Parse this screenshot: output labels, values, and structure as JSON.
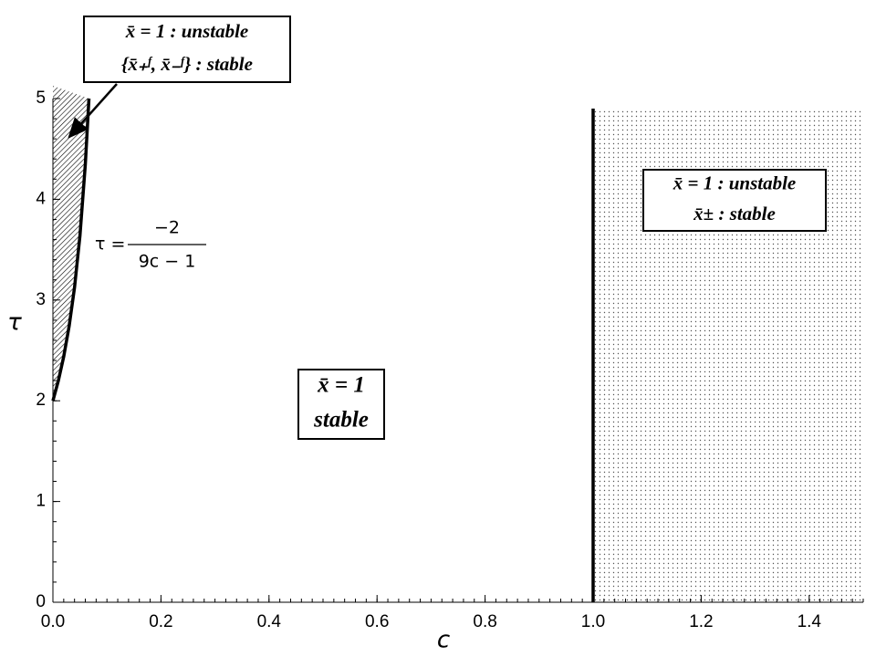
{
  "chart_data": {
    "type": "line",
    "xlabel": "c",
    "ylabel": "τ",
    "xlim": [
      0,
      1.5
    ],
    "ylim": [
      0,
      5
    ],
    "xticks": [
      {
        "value": 0,
        "label": "0.0"
      },
      0.2,
      0.4,
      0.6,
      0.8,
      {
        "value": 1,
        "label": "1.0"
      },
      1.2,
      1.4
    ],
    "yticks": [
      0,
      1,
      2,
      3,
      4,
      5
    ],
    "series": [
      {
        "color": "#000000",
        "x": [
          0,
          0.01,
          0.02,
          0.03,
          0.04,
          0.05,
          0.06,
          0.0667
        ],
        "values": [
          2,
          2.198,
          2.439,
          2.74,
          3.125,
          3.636,
          4.348,
          5
        ]
      },
      {
        "color": "#000000",
        "x": [
          1,
          1
        ],
        "values": [
          0,
          4.9
        ]
      }
    ],
    "equation": {
      "lhs": "τ =",
      "numerator": "−2",
      "denominator": "9c − 1"
    },
    "boxes": [
      {
        "lines": [
          "x̄ = 1 : unstable",
          "{x̄₊ᶠ, x̄₋ᶠ} : stable"
        ]
      },
      {
        "lines": [
          "x̄ = 1 : unstable",
          "x̄± : stable"
        ]
      },
      {
        "lines": [
          "x̄ = 1",
          "stable"
        ]
      }
    ]
  }
}
